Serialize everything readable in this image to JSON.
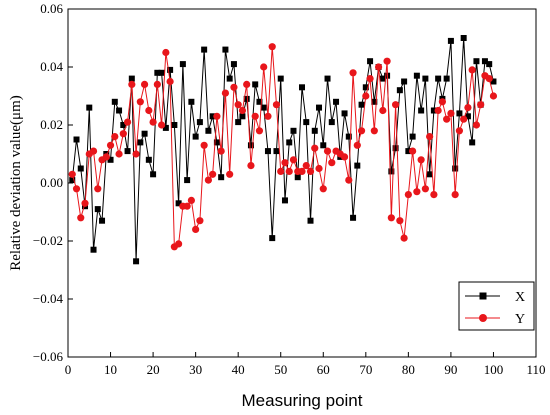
{
  "chart_data": {
    "type": "line",
    "xlabel": "Measuring point",
    "ylabel": "Relative deviation value(μm)",
    "xlim": [
      0,
      110
    ],
    "ylim": [
      -0.06,
      0.06
    ],
    "x_ticks": [
      "0",
      "10",
      "20",
      "30",
      "40",
      "50",
      "60",
      "70",
      "80",
      "90",
      "100",
      "110"
    ],
    "y_ticks": [
      "-0.06",
      "-0.04",
      "-0.02",
      "0.00",
      "0.02",
      "0.04",
      "0.06"
    ],
    "legend_position": "bottom-right",
    "grid": false,
    "x": [
      1,
      2,
      3,
      4,
      5,
      6,
      7,
      8,
      9,
      10,
      11,
      12,
      13,
      14,
      15,
      16,
      17,
      18,
      19,
      20,
      21,
      22,
      23,
      24,
      25,
      26,
      27,
      28,
      29,
      30,
      31,
      32,
      33,
      34,
      35,
      36,
      37,
      38,
      39,
      40,
      41,
      42,
      43,
      44,
      45,
      46,
      47,
      48,
      49,
      50,
      51,
      52,
      53,
      54,
      55,
      56,
      57,
      58,
      59,
      60,
      61,
      62,
      63,
      64,
      65,
      66,
      67,
      68,
      69,
      70,
      71,
      72,
      73,
      74,
      75,
      76,
      77,
      78,
      79,
      80,
      81,
      82,
      83,
      84,
      85,
      86,
      87,
      88,
      89,
      90,
      91,
      92,
      93,
      94,
      95,
      96,
      97,
      98,
      99,
      100
    ],
    "series": [
      {
        "name": "X",
        "color": "#000000",
        "marker": "square",
        "values": [
          0.001,
          0.015,
          0.005,
          -0.008,
          0.026,
          -0.023,
          -0.009,
          -0.013,
          0.01,
          0.008,
          0.028,
          0.025,
          0.02,
          0.011,
          0.036,
          -0.027,
          0.014,
          0.017,
          0.008,
          0.003,
          0.038,
          0.038,
          0.019,
          0.039,
          0.02,
          -0.007,
          0.041,
          0.001,
          0.028,
          0.016,
          0.021,
          0.046,
          0.018,
          0.023,
          0.014,
          0.002,
          0.046,
          0.036,
          0.041,
          0.021,
          0.023,
          0.029,
          0.013,
          0.034,
          0.028,
          0.026,
          0.011,
          -0.019,
          0.011,
          0.036,
          -0.006,
          0.014,
          0.018,
          0.002,
          0.033,
          0.021,
          -0.013,
          0.018,
          0.026,
          0.013,
          0.036,
          0.021,
          0.028,
          0.009,
          0.024,
          0.016,
          -0.012,
          0.006,
          0.027,
          0.033,
          0.042,
          0.028,
          0.04,
          0.036,
          0.037,
          0.004,
          0.012,
          0.032,
          0.035,
          0.011,
          0.016,
          0.037,
          0.025,
          0.036,
          0.003,
          0.025,
          0.036,
          0.029,
          0.036,
          0.049,
          0.005,
          0.024,
          0.05,
          0.023,
          0.014,
          0.042,
          0.027,
          0.042,
          0.041,
          0.035
        ]
      },
      {
        "name": "Y",
        "color": "#e8161b",
        "marker": "circle",
        "values": [
          0.003,
          -0.002,
          -0.012,
          -0.007,
          0.01,
          0.011,
          -0.002,
          0.008,
          0.009,
          0.013,
          0.016,
          0.01,
          0.017,
          0.021,
          0.034,
          0.01,
          0.028,
          0.034,
          0.025,
          0.021,
          0.034,
          0.02,
          0.045,
          0.035,
          -0.022,
          -0.021,
          -0.008,
          -0.008,
          -0.006,
          -0.016,
          -0.013,
          0.013,
          0.001,
          0.003,
          0.023,
          0.011,
          0.031,
          0.003,
          0.033,
          0.027,
          0.025,
          0.034,
          0.006,
          0.023,
          0.018,
          0.04,
          0.023,
          0.047,
          0.027,
          0.004,
          0.007,
          0.004,
          0.008,
          0.004,
          0.004,
          0.006,
          0.004,
          0.012,
          0.005,
          -0.002,
          0.011,
          0.007,
          0.011,
          0.01,
          0.009,
          0.001,
          0.038,
          0.013,
          0.018,
          0.03,
          0.036,
          0.018,
          0.04,
          0.025,
          0.042,
          -0.012,
          0.027,
          -0.013,
          -0.019,
          -0.004,
          0.011,
          -0.003,
          0.008,
          -0.002,
          0.016,
          -0.004,
          0.025,
          0.028,
          0.022,
          0.024,
          -0.004,
          0.018,
          0.022,
          0.026,
          0.039,
          0.02,
          0.027,
          0.037,
          0.036,
          0.03
        ]
      }
    ]
  }
}
